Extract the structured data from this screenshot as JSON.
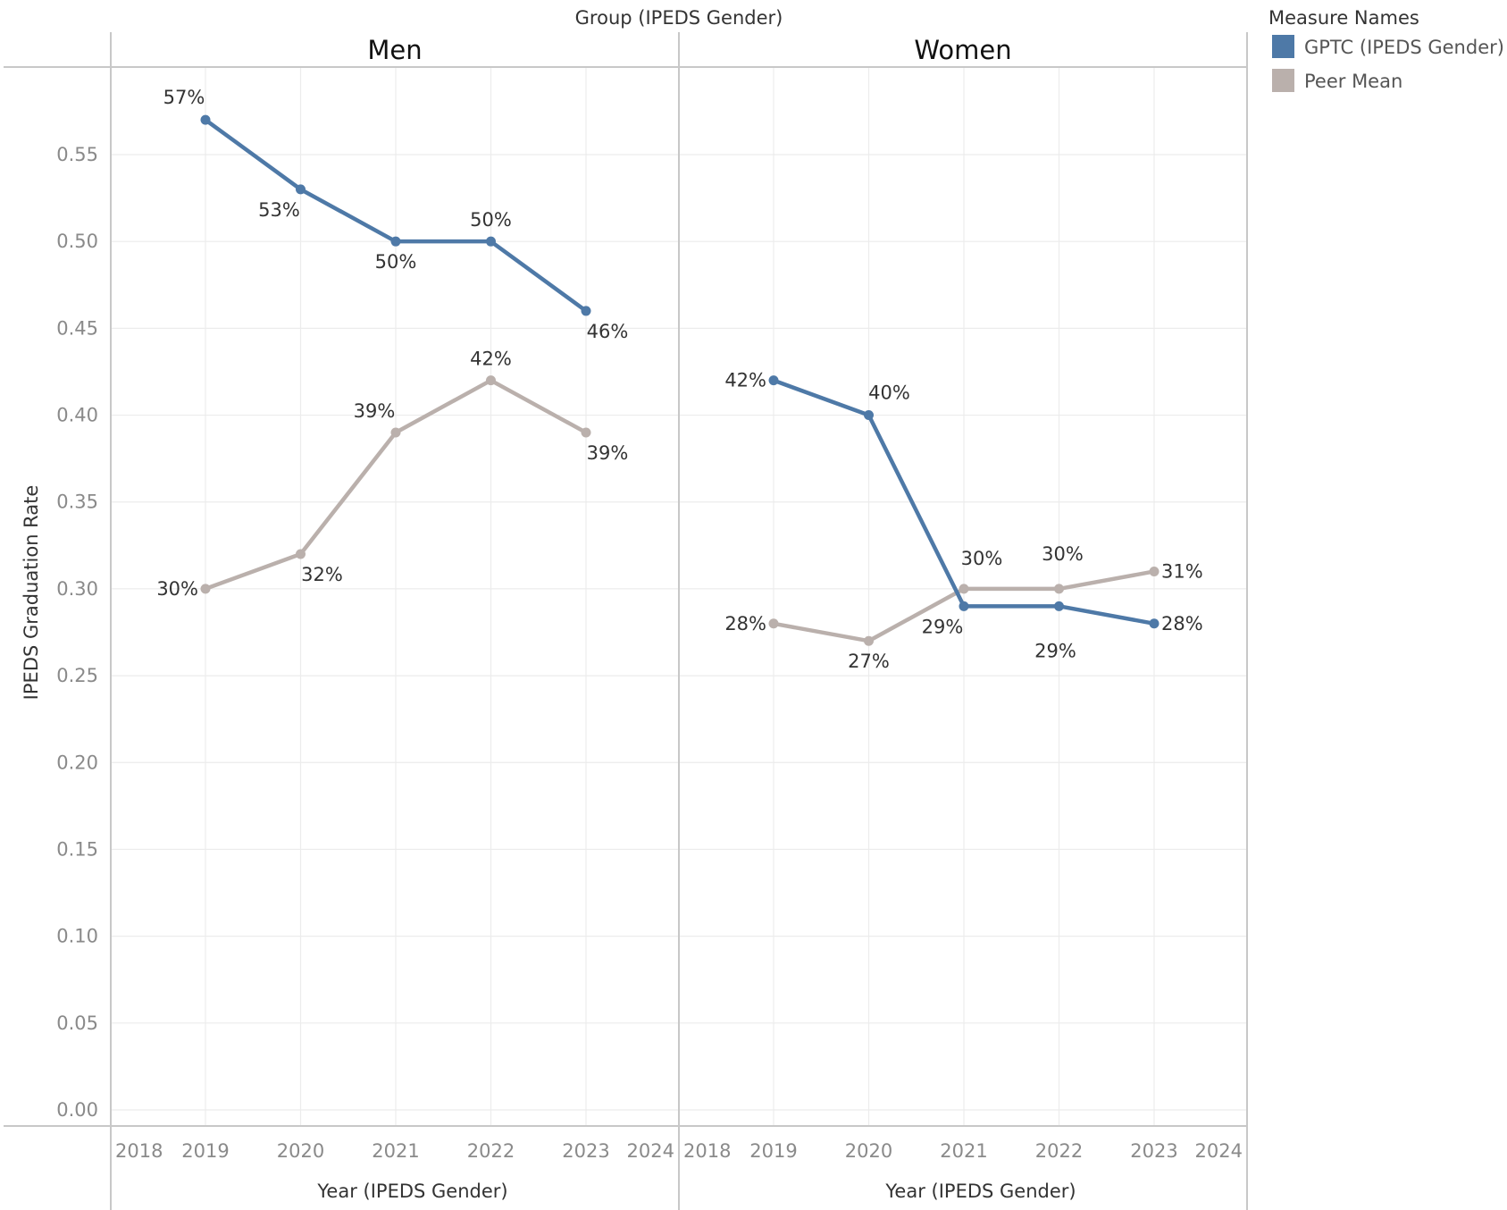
{
  "chart_data": {
    "type": "line",
    "column_header": "Group (IPEDS Gender)",
    "ylabel": "IPEDS Graduation Rate",
    "xlabel": "Year (IPEDS Gender)",
    "ylim": [
      0,
      0.58
    ],
    "yticks": [
      "0.00",
      "0.05",
      "0.10",
      "0.15",
      "0.20",
      "0.25",
      "0.30",
      "0.35",
      "0.40",
      "0.45",
      "0.50",
      "0.55"
    ],
    "xlim": [
      2018,
      2024
    ],
    "xticks": [
      "2018",
      "2019",
      "2020",
      "2021",
      "2022",
      "2023",
      "2024"
    ],
    "grid": true,
    "legend": {
      "title": "Measure Names",
      "position": "right",
      "items": [
        {
          "name": "GPTC (IPEDS Gender)",
          "color": "#4e79a7"
        },
        {
          "name": "Peer Mean",
          "color": "#bab0ac"
        }
      ]
    },
    "panels": [
      {
        "title": "Men",
        "series": [
          {
            "name": "GPTC (IPEDS Gender)",
            "color": "#4e79a7",
            "x": [
              2019,
              2020,
              2021,
              2022,
              2023
            ],
            "values": [
              0.57,
              0.53,
              0.5,
              0.5,
              0.46
            ],
            "labels": [
              "57%",
              "53%",
              "50%",
              "50%",
              "46%"
            ]
          },
          {
            "name": "Peer Mean",
            "color": "#bab0ac",
            "x": [
              2019,
              2020,
              2021,
              2022,
              2023
            ],
            "values": [
              0.3,
              0.32,
              0.39,
              0.42,
              0.39
            ],
            "labels": [
              "30%",
              "32%",
              "39%",
              "42%",
              "39%"
            ]
          }
        ]
      },
      {
        "title": "Women",
        "series": [
          {
            "name": "GPTC (IPEDS Gender)",
            "color": "#4e79a7",
            "x": [
              2019,
              2020,
              2021,
              2022,
              2023
            ],
            "values": [
              0.42,
              0.4,
              0.29,
              0.29,
              0.28
            ],
            "labels": [
              "42%",
              "40%",
              "29%",
              "29%",
              "28%"
            ]
          },
          {
            "name": "Peer Mean",
            "color": "#bab0ac",
            "x": [
              2019,
              2020,
              2021,
              2022,
              2023
            ],
            "values": [
              0.28,
              0.27,
              0.3,
              0.3,
              0.31
            ],
            "labels": [
              "28%",
              "27%",
              "30%",
              "30%",
              "31%"
            ]
          }
        ]
      }
    ]
  }
}
